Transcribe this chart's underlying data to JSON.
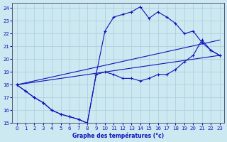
{
  "xlabel": "Graphe des températures (°c)",
  "xlim": [
    -0.5,
    23.5
  ],
  "ylim": [
    15,
    24.4
  ],
  "yticks": [
    15,
    16,
    17,
    18,
    19,
    20,
    21,
    22,
    23,
    24
  ],
  "xticks": [
    0,
    1,
    2,
    3,
    4,
    5,
    6,
    7,
    8,
    9,
    10,
    11,
    12,
    13,
    14,
    15,
    16,
    17,
    18,
    19,
    20,
    21,
    22,
    23
  ],
  "bg_color": "#cce8f0",
  "grid_color": "#aaccdd",
  "line_color": "#1111bb",
  "line1_x": [
    0,
    1,
    2,
    3,
    4,
    5,
    6,
    7,
    8,
    9,
    10,
    11,
    12,
    13,
    14,
    15,
    16,
    17,
    18,
    19,
    20,
    21,
    22,
    23
  ],
  "line1_y": [
    18.0,
    17.5,
    17.0,
    16.6,
    16.0,
    15.7,
    15.5,
    15.3,
    15.0,
    18.8,
    22.2,
    23.3,
    23.5,
    23.7,
    24.1,
    23.2,
    23.7,
    23.3,
    22.8,
    22.0,
    22.2,
    21.3,
    20.7,
    20.3
  ],
  "line2_x": [
    0,
    1,
    2,
    3,
    4,
    5,
    6,
    7,
    8,
    9,
    10,
    11,
    12,
    13,
    14,
    15,
    16,
    17,
    18,
    19,
    20,
    21,
    22,
    23
  ],
  "line2_y": [
    18.0,
    17.5,
    17.0,
    16.6,
    16.0,
    15.7,
    15.5,
    15.3,
    15.0,
    18.8,
    19.0,
    18.8,
    18.5,
    18.5,
    18.3,
    18.5,
    18.8,
    18.8,
    19.2,
    19.8,
    20.3,
    21.5,
    20.7,
    20.3
  ],
  "line3_x": [
    0,
    23
  ],
  "line3_y": [
    18.0,
    20.3
  ],
  "line4_x": [
    0,
    23
  ],
  "line4_y": [
    18.0,
    21.5
  ]
}
